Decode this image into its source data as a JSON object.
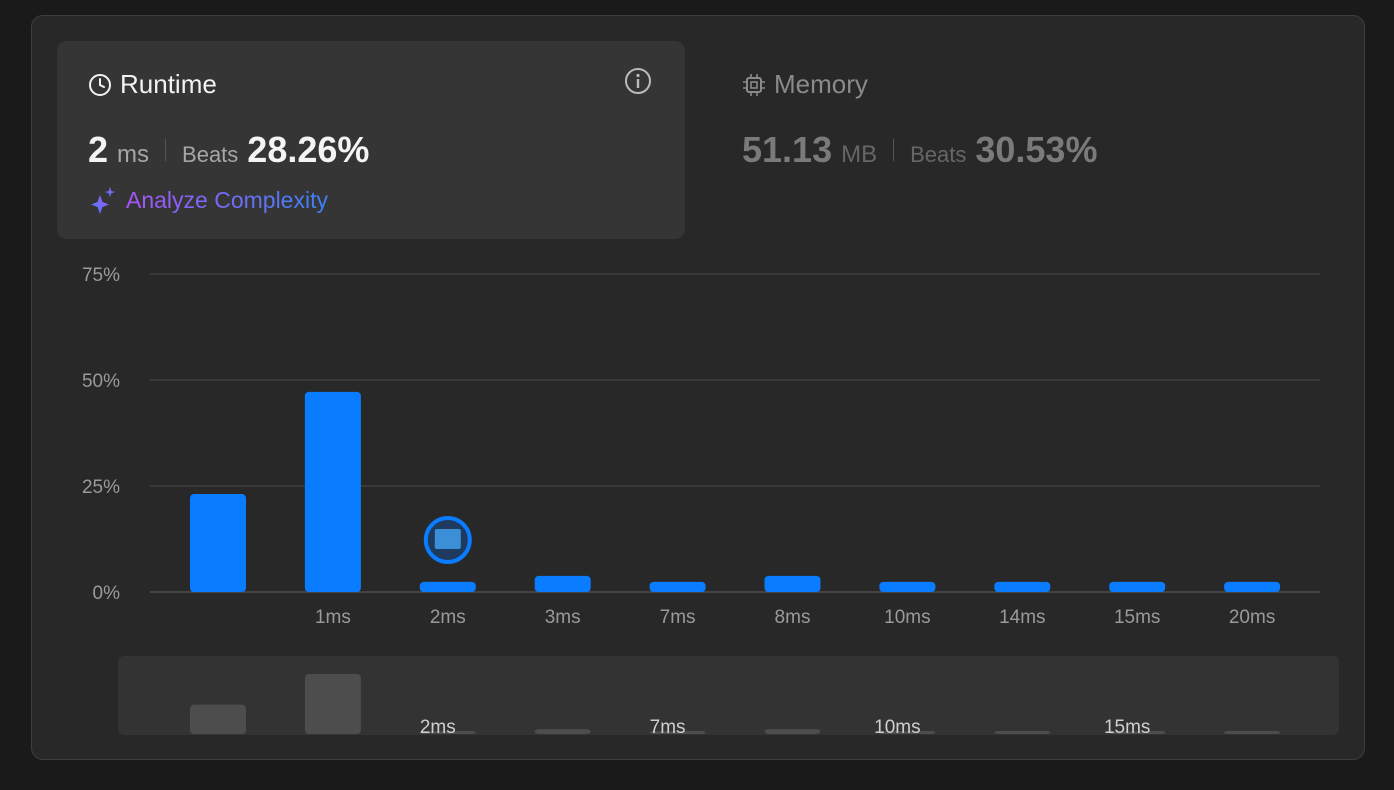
{
  "runtime_card": {
    "title": "Runtime",
    "value": "2",
    "unit": "ms",
    "beats_label": "Beats",
    "beats": "28.26%",
    "action": "Analyze Complexity"
  },
  "memory_card": {
    "title": "Memory",
    "value": "51.13",
    "unit": "MB",
    "beats_label": "Beats",
    "beats": "30.53%"
  },
  "chart_data": {
    "type": "bar",
    "categories": [
      null,
      "1ms",
      "2ms",
      "3ms",
      "7ms",
      "8ms",
      "10ms",
      "14ms",
      "15ms",
      "20ms"
    ],
    "values": [
      23.1,
      47.2,
      2.4,
      3.8,
      2.4,
      3.8,
      2.4,
      2.4,
      2.4,
      2.4
    ],
    "color": "#0a7cff",
    "ylim": [
      0,
      75
    ],
    "yticks": [
      {
        "value": 0,
        "label": "0%"
      },
      {
        "value": 25,
        "label": "25%"
      },
      {
        "value": 50,
        "label": "50%"
      },
      {
        "value": 75,
        "label": "75%"
      }
    ],
    "grid": true
  }
}
